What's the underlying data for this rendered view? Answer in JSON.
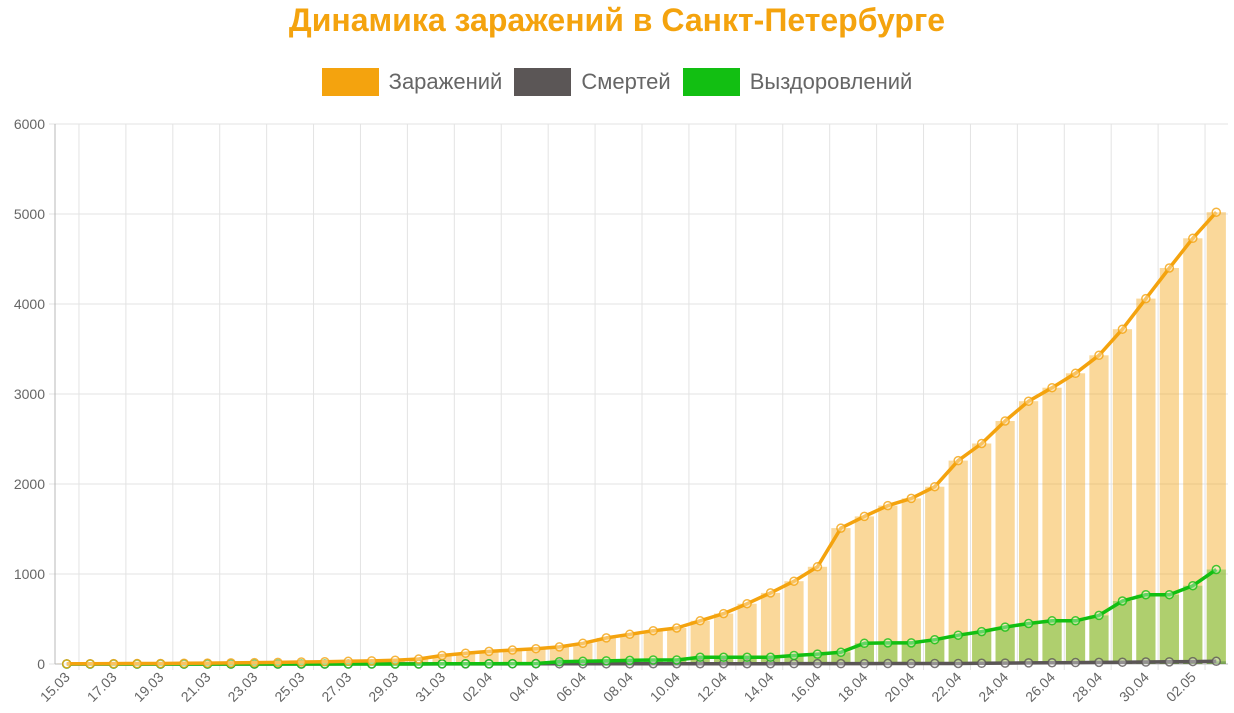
{
  "chart_data": {
    "type": "bar+line",
    "title": "Динамика заражений в Санкт-Петербурге",
    "xlabel": "",
    "ylabel": "",
    "ylim": [
      0,
      6000
    ],
    "yticks": [
      0,
      1000,
      2000,
      3000,
      4000,
      5000,
      6000
    ],
    "grid": true,
    "legend_position": "top",
    "x_tick_labels": [
      "15.03",
      "17.03",
      "19.03",
      "21.03",
      "23.03",
      "25.03",
      "27.03",
      "29.03",
      "31.03",
      "02.04",
      "04.04",
      "06.04",
      "08.04",
      "10.04",
      "12.04",
      "14.04",
      "16.04",
      "18.04",
      "20.04",
      "22.04",
      "24.04",
      "26.04",
      "28.04",
      "30.04",
      "02.05"
    ],
    "categories": [
      "15.03",
      "16.03",
      "17.03",
      "18.03",
      "19.03",
      "20.03",
      "21.03",
      "22.03",
      "23.03",
      "24.03",
      "25.03",
      "26.03",
      "27.03",
      "28.03",
      "29.03",
      "30.03",
      "31.03",
      "01.04",
      "02.04",
      "03.04",
      "04.04",
      "05.04",
      "06.04",
      "07.04",
      "08.04",
      "09.04",
      "10.04",
      "11.04",
      "12.04",
      "13.04",
      "14.04",
      "15.04",
      "16.04",
      "17.04",
      "18.04",
      "19.04",
      "20.04",
      "21.04",
      "22.04",
      "23.04",
      "24.04",
      "25.04",
      "26.04",
      "27.04",
      "28.04",
      "29.04",
      "30.04",
      "01.05",
      "02.05",
      "03.05"
    ],
    "series": [
      {
        "name": "Заражений",
        "color": "#f4a30e",
        "values": [
          2,
          3,
          4,
          5,
          6,
          8,
          10,
          12,
          15,
          18,
          22,
          25,
          30,
          35,
          42,
          55,
          95,
          120,
          140,
          155,
          170,
          190,
          230,
          290,
          330,
          370,
          400,
          480,
          560,
          670,
          790,
          920,
          1080,
          1510,
          1640,
          1760,
          1840,
          1970,
          2260,
          2450,
          2700,
          2920,
          3070,
          3230,
          3430,
          3720,
          4060,
          4400,
          4730,
          5020
        ]
      },
      {
        "name": "Смертей",
        "color": "#5b5656",
        "values": [
          0,
          0,
          0,
          0,
          0,
          0,
          0,
          0,
          0,
          0,
          0,
          0,
          1,
          1,
          1,
          1,
          1,
          1,
          1,
          2,
          2,
          2,
          2,
          2,
          2,
          3,
          3,
          3,
          3,
          3,
          3,
          4,
          4,
          4,
          4,
          5,
          5,
          6,
          6,
          8,
          10,
          12,
          14,
          16,
          18,
          20,
          22,
          24,
          27,
          30
        ]
      },
      {
        "name": "Выздоровлений",
        "color": "#12bf12",
        "values": [
          0,
          0,
          0,
          0,
          0,
          0,
          0,
          0,
          0,
          0,
          0,
          0,
          0,
          0,
          0,
          0,
          2,
          3,
          3,
          4,
          5,
          25,
          30,
          35,
          40,
          45,
          45,
          75,
          75,
          75,
          75,
          95,
          110,
          130,
          230,
          235,
          235,
          270,
          320,
          360,
          410,
          450,
          480,
          480,
          540,
          700,
          770,
          770,
          870,
          1050
        ]
      }
    ]
  }
}
